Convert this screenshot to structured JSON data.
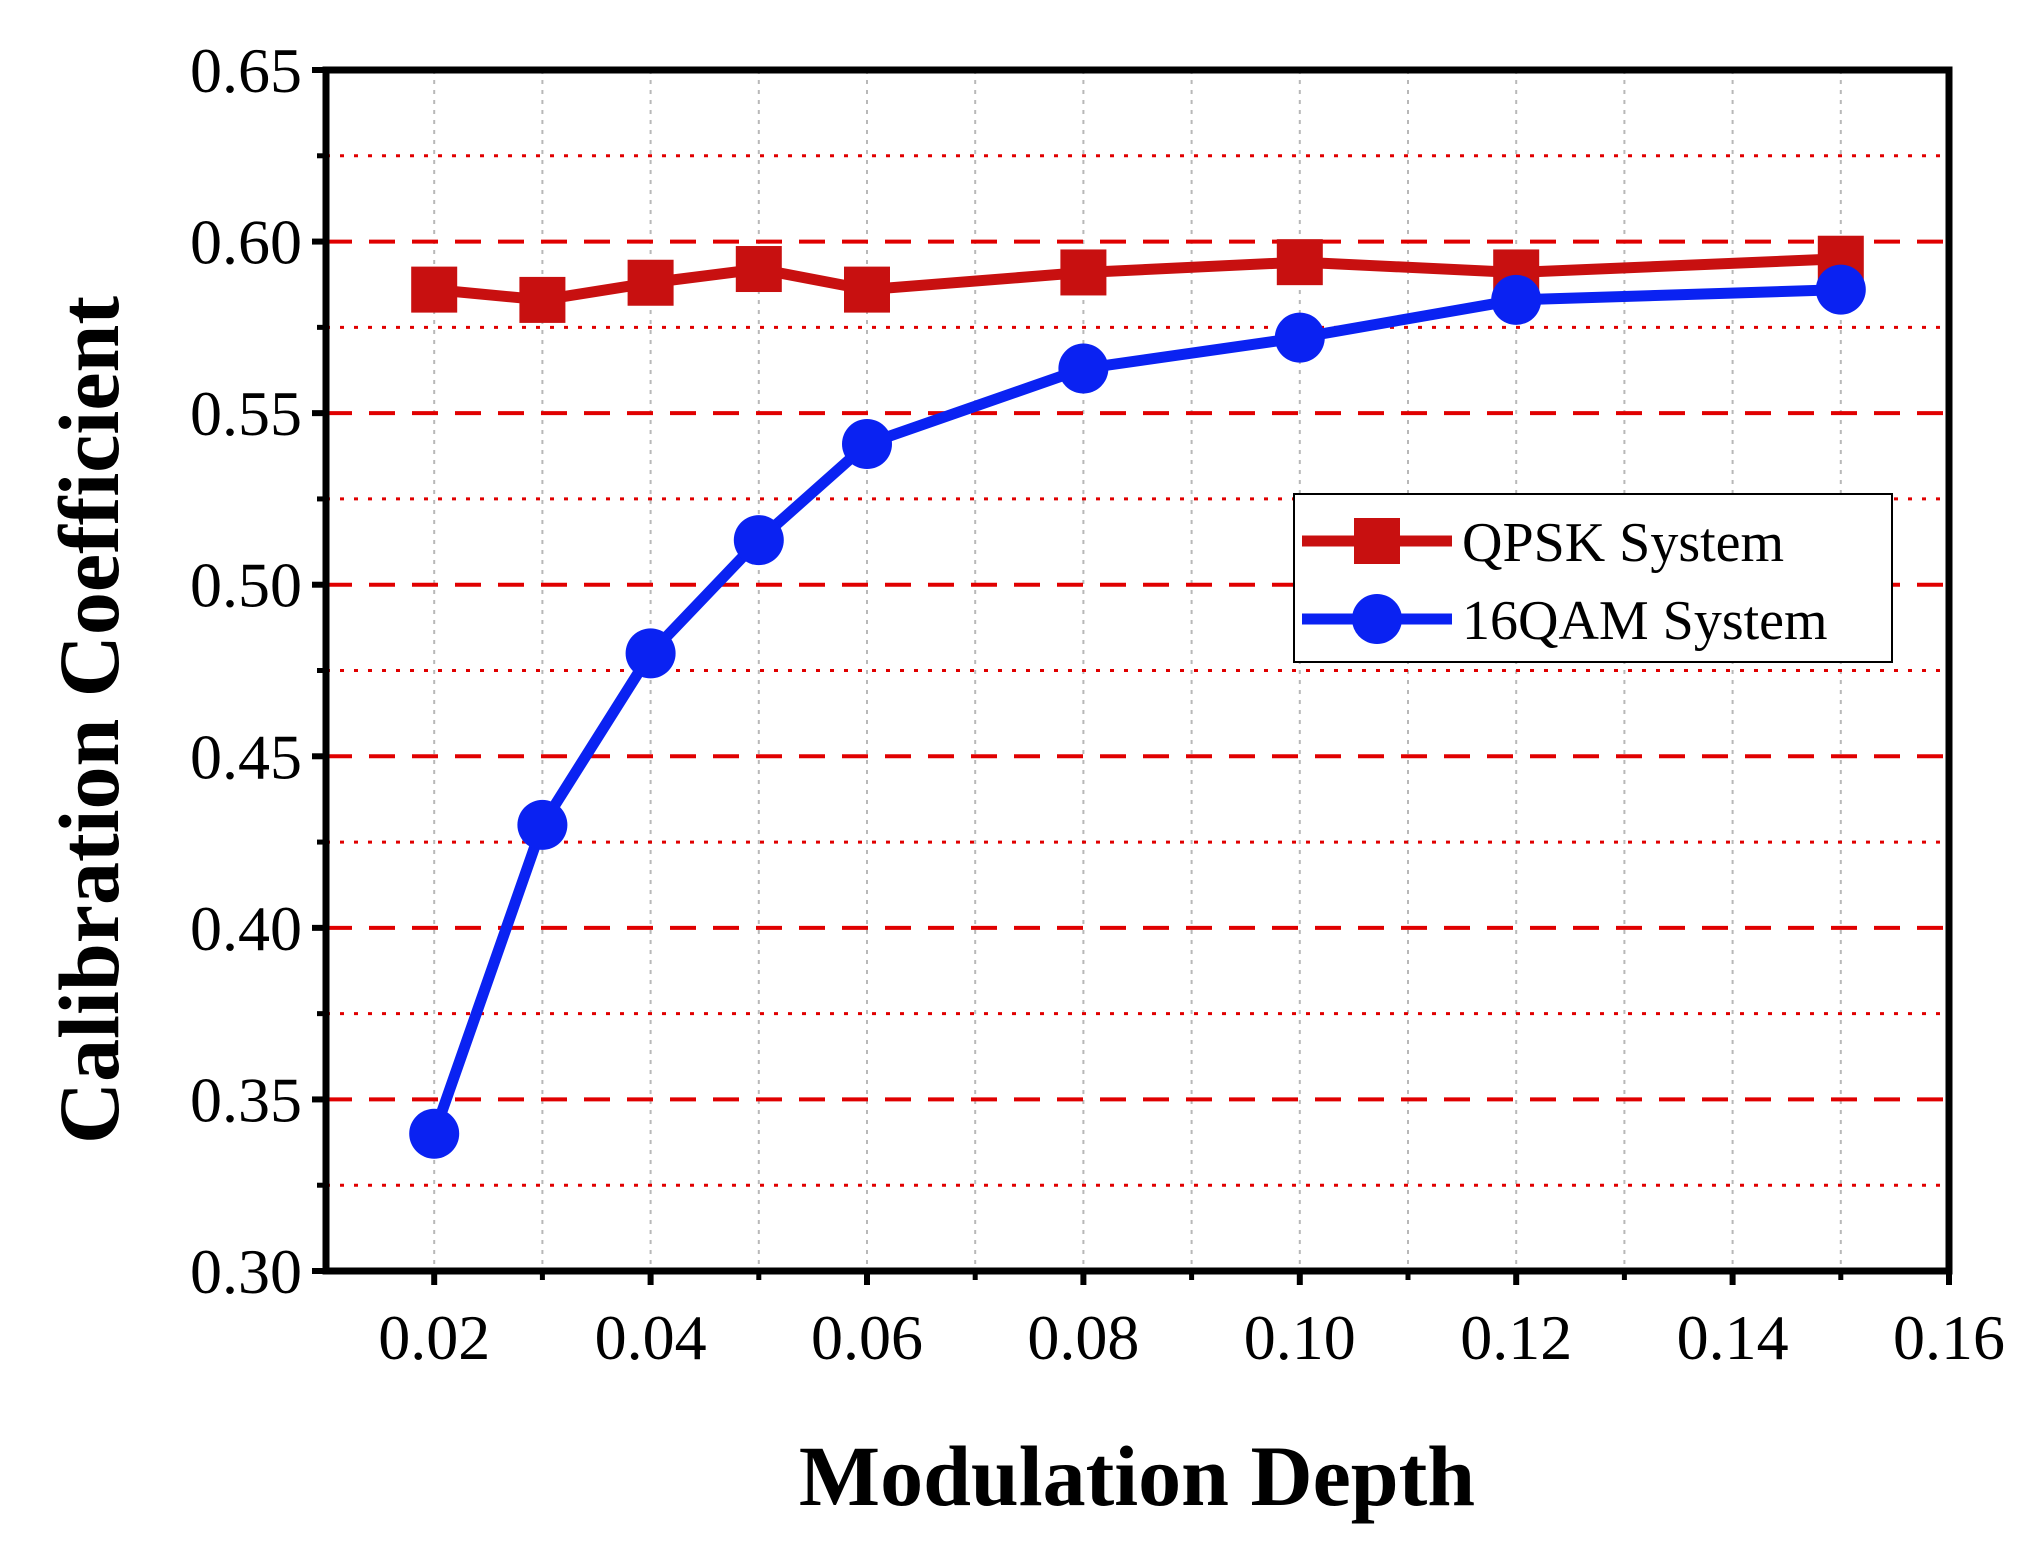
{
  "chart_data": {
    "type": "line",
    "title": "",
    "xlabel": "Modulation Depth",
    "ylabel": "Calibration Coefficient",
    "xlim": [
      0.01,
      0.16
    ],
    "ylim": [
      0.3,
      0.65
    ],
    "x_ticks": [
      0.02,
      0.04,
      0.06,
      0.08,
      0.1,
      0.12,
      0.14,
      0.16
    ],
    "x_tick_labels": [
      "0.02",
      "0.04",
      "0.06",
      "0.08",
      "0.10",
      "0.12",
      "0.14",
      "0.16"
    ],
    "x_minor_ticks": [
      0.03,
      0.05,
      0.07,
      0.09,
      0.11,
      0.13,
      0.15
    ],
    "y_ticks": [
      0.3,
      0.35,
      0.4,
      0.45,
      0.5,
      0.55,
      0.6,
      0.65
    ],
    "y_tick_labels": [
      "0.30",
      "0.35",
      "0.40",
      "0.45",
      "0.50",
      "0.55",
      "0.60",
      "0.65"
    ],
    "y_minor_ticks": [
      0.325,
      0.375,
      0.425,
      0.475,
      0.525,
      0.575,
      0.625
    ],
    "grid": {
      "major_y": "dashed",
      "minor_y": "dotted",
      "x": "dotted",
      "major_y_color": "#e00000",
      "minor_y_color": "#e00000",
      "x_color": "#b8b8b8"
    },
    "legend_position": "center-right",
    "series": [
      {
        "name": "QPSK System",
        "marker": "square",
        "color": "#c81010",
        "x": [
          0.02,
          0.03,
          0.04,
          0.05,
          0.06,
          0.08,
          0.1,
          0.12,
          0.15
        ],
        "y": [
          0.586,
          0.583,
          0.588,
          0.592,
          0.586,
          0.591,
          0.594,
          0.591,
          0.595
        ]
      },
      {
        "name": "16QAM System",
        "marker": "circle",
        "color": "#0a22f2",
        "x": [
          0.02,
          0.03,
          0.04,
          0.05,
          0.06,
          0.08,
          0.1,
          0.12,
          0.15
        ],
        "y": [
          0.34,
          0.43,
          0.48,
          0.513,
          0.541,
          0.563,
          0.572,
          0.583,
          0.586
        ]
      }
    ]
  }
}
